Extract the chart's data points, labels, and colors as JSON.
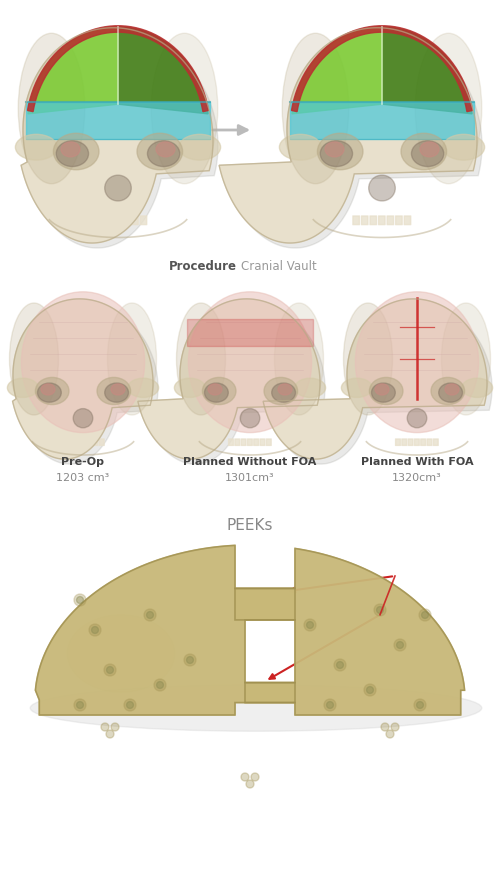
{
  "bg_color": "#ffffff",
  "procedure_bold": "Procedure",
  "procedure_light": "Cranial Vault",
  "peeks_label": "PEEKs",
  "skull_labels": [
    "Pre-Op",
    "Planned Without FOA",
    "Planned With FOA"
  ],
  "skull_volumes": [
    "1203 cm³",
    "1301cm³",
    "1320cm³"
  ],
  "label_color": "#444444",
  "volume_color": "#888888",
  "proc_bold_color": "#555555",
  "proc_light_color": "#999999",
  "arrow_gray": "#bbbbbb",
  "red_arrow": "#cc2222",
  "bone_light": "#e8e0cc",
  "bone_mid": "#d4c9a8",
  "bone_dark": "#b8aa88",
  "bone_shadow": "#a09878",
  "green_dark": "#3a7a10",
  "green_mid": "#5aaa20",
  "green_light": "#78cc30",
  "cyan": "#50c8d8",
  "cyan_dark": "#38a8b8",
  "red_line": "#cc2222",
  "brain_pink": "#e8c0b8",
  "brain_light": "#f0d0c8",
  "peek_tan": "#c8b878",
  "peek_light": "#ddd090",
  "peek_dark": "#a09050",
  "peek_shadow": "#887840"
}
